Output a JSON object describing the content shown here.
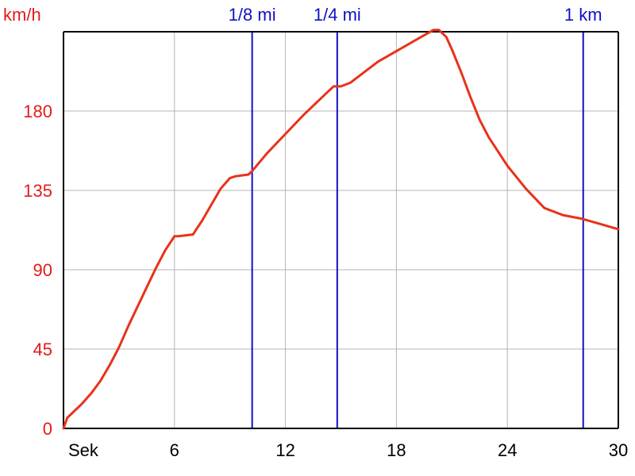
{
  "chart_data": {
    "type": "line",
    "y_unit_label": "km/h",
    "x_unit_label": "Sek",
    "xlim": [
      0,
      30
    ],
    "ylim": [
      0,
      225
    ],
    "x_ticks": [
      6,
      12,
      18,
      24,
      30
    ],
    "y_ticks": [
      0,
      45,
      90,
      135,
      180
    ],
    "grid": true,
    "colors": {
      "line": "#e8321a",
      "markers": "#1010c8",
      "ytick": "#e41a1a",
      "xtick": "#000000",
      "grid": "#b4b4b4",
      "axis": "#000000"
    },
    "distance_markers": [
      {
        "label": "1/8 mi",
        "x": 10.2
      },
      {
        "label": "1/4 mi",
        "x": 14.8
      },
      {
        "label": "1 km",
        "x": 28.1
      }
    ],
    "series": [
      {
        "x": [
          0,
          0.2,
          0.5,
          1,
          1.5,
          2,
          2.5,
          3,
          3.5,
          4,
          4.5,
          5,
          5.5,
          6,
          6.2,
          7,
          7.5,
          8,
          8.5,
          9,
          9.3,
          10,
          10.2,
          11,
          12,
          13,
          14,
          14.6,
          15,
          15.5,
          16,
          17,
          18,
          19,
          20,
          20.3,
          20.7,
          21,
          21.5,
          22,
          22.5,
          23,
          24,
          25,
          26,
          27,
          28,
          29,
          30
        ],
        "y": [
          0,
          6,
          9,
          14,
          20,
          27,
          36,
          46,
          58,
          69,
          80,
          91,
          101,
          109,
          109,
          110,
          118,
          127,
          136,
          142,
          143,
          144,
          146,
          156,
          167,
          178,
          188,
          194,
          194,
          196,
          200,
          208,
          214,
          220,
          226,
          226,
          222,
          215,
          202,
          188,
          175,
          165,
          149,
          136,
          125,
          121,
          119,
          116,
          113
        ]
      }
    ]
  }
}
